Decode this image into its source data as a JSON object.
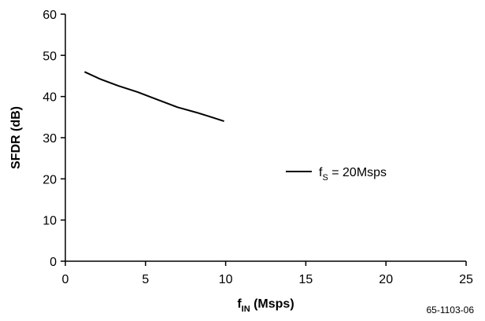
{
  "chart_data": {
    "type": "line",
    "xlabel": {
      "main": "f",
      "sub": "IN",
      "unit": " (Msps)"
    },
    "ylabel": "SFDR (dB)",
    "xlim": [
      0,
      25
    ],
    "ylim": [
      0,
      60
    ],
    "xticks": [
      0,
      5,
      10,
      15,
      20,
      25
    ],
    "yticks": [
      0,
      10,
      20,
      30,
      40,
      50,
      60
    ],
    "grid": false,
    "legend_position": "right-middle",
    "series": [
      {
        "name": {
          "main": "f",
          "sub": "S",
          "rest": " = 20Msps"
        },
        "color": "#000000",
        "x": [
          1.2,
          2.2,
          3.3,
          4.5,
          5.7,
          7.0,
          8.2,
          9.2,
          9.9
        ],
        "y": [
          46,
          44.2,
          42.6,
          41.1,
          39.3,
          37.4,
          36.1,
          34.9,
          34
        ]
      }
    ],
    "figure_id": "65-1103-06"
  }
}
